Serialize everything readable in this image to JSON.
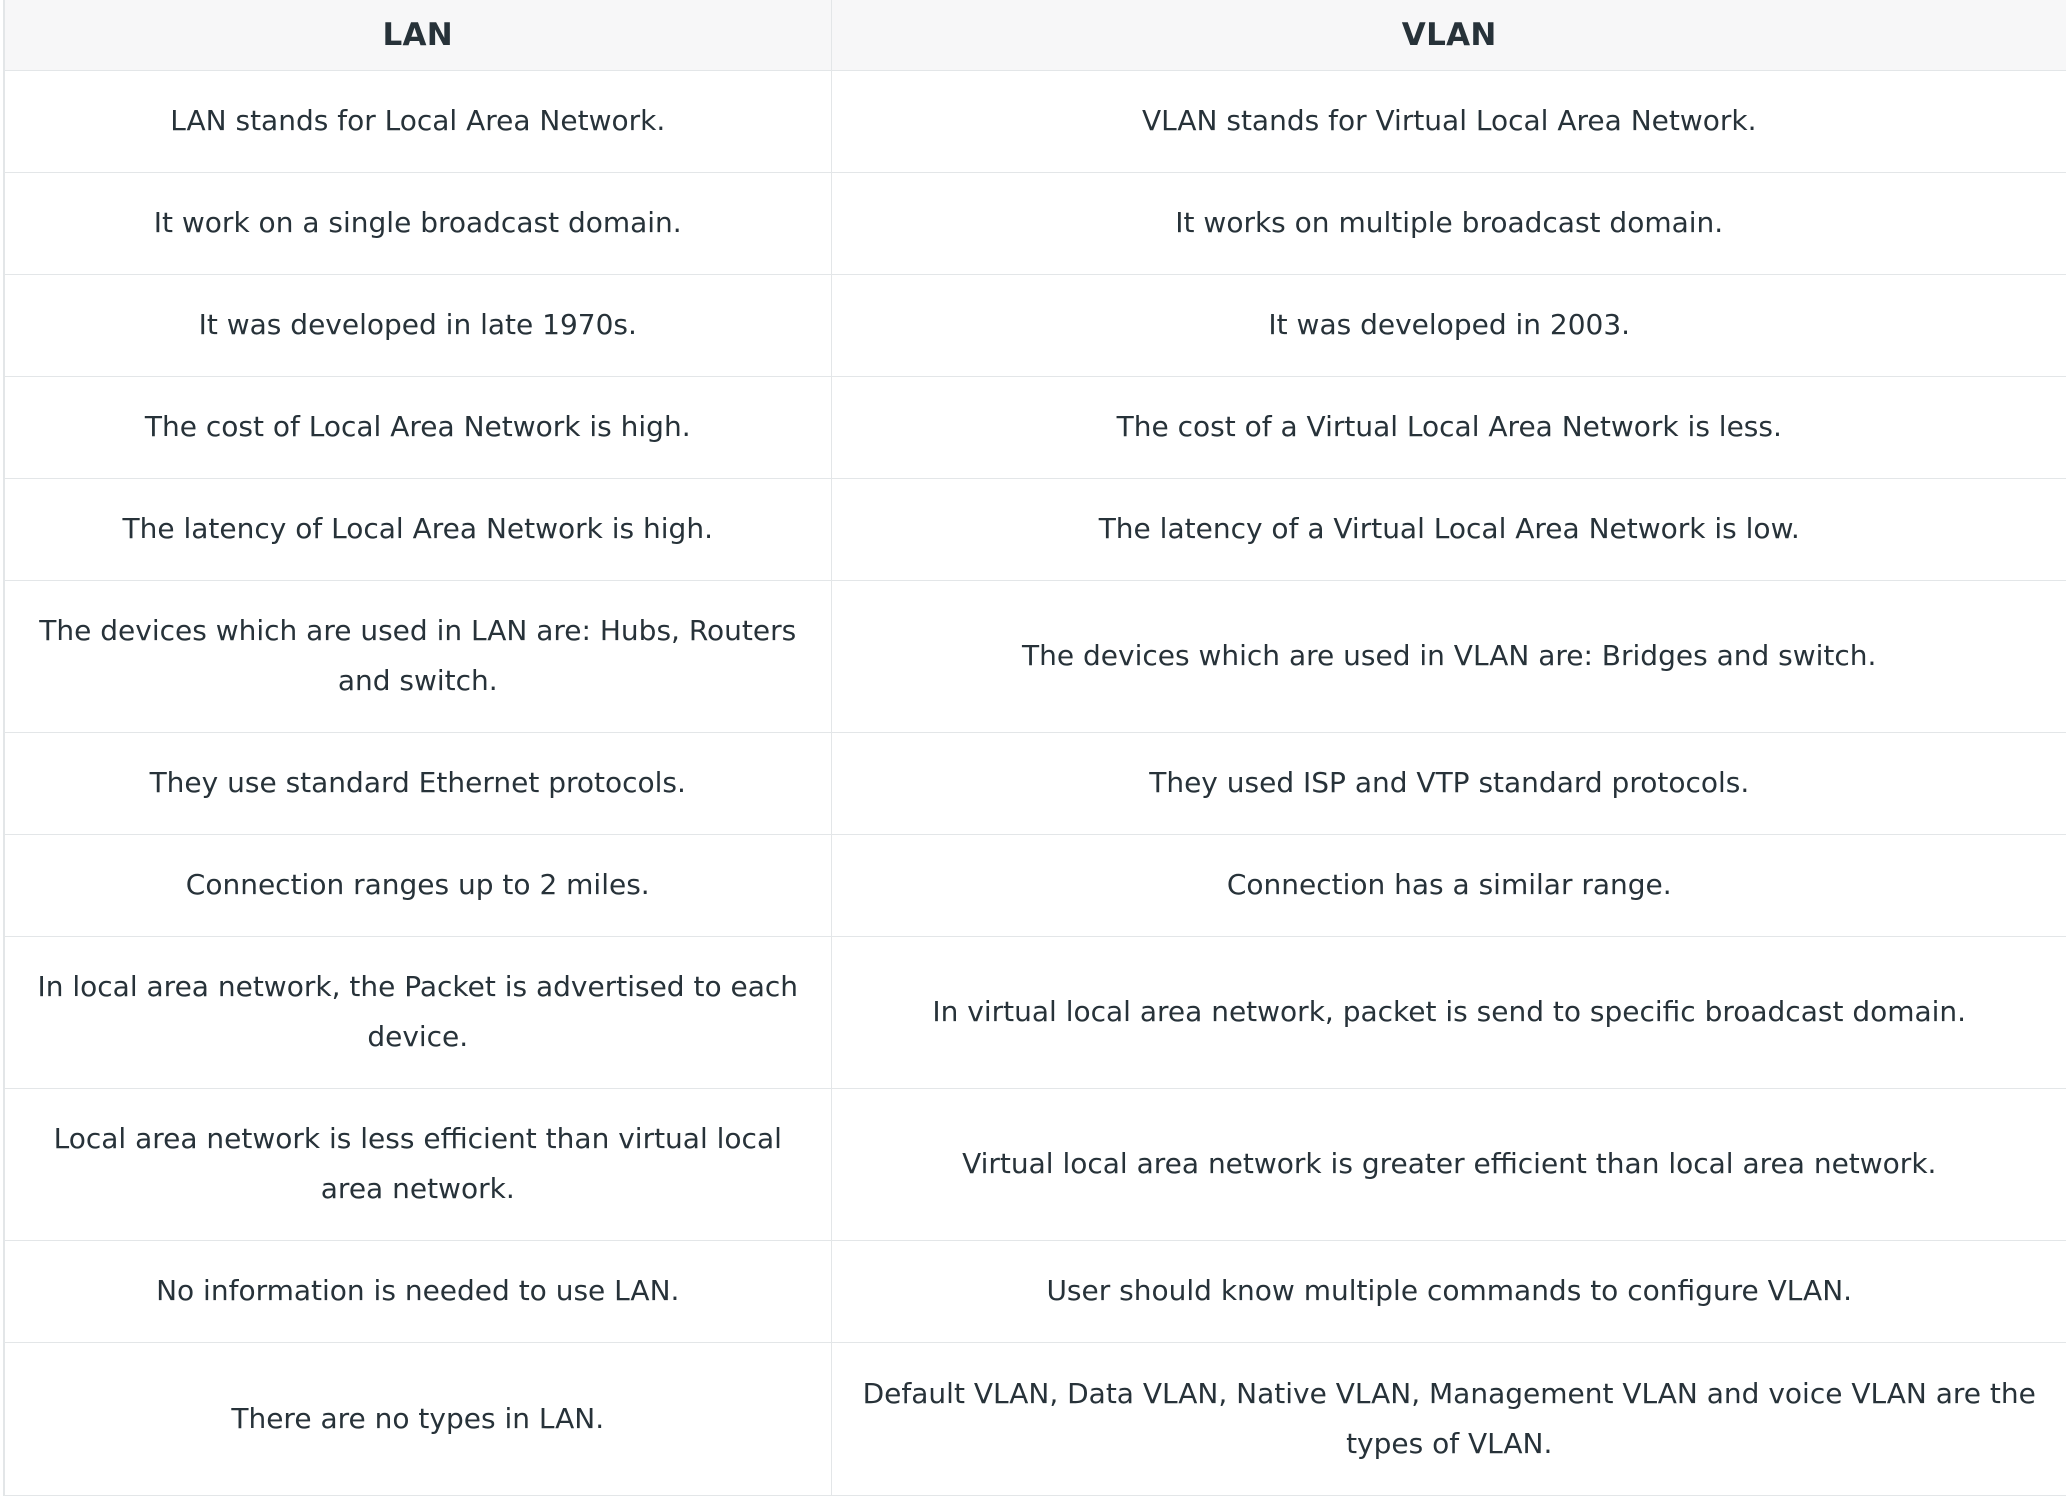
{
  "table": {
    "headers": [
      "LAN",
      "VLAN"
    ],
    "rows": [
      [
        "LAN stands for Local Area Network.",
        "VLAN stands for Virtual Local Area Network."
      ],
      [
        "It work on a single broadcast domain.",
        "It works on multiple broadcast domain."
      ],
      [
        "It was developed in late 1970s.",
        "It was developed in 2003."
      ],
      [
        "The cost of Local Area Network is high.",
        "The cost of a Virtual Local Area Network is less."
      ],
      [
        "The latency of Local Area Network is high.",
        "The latency of a Virtual Local Area Network is low."
      ],
      [
        "The devices which are used in LAN are: Hubs, Routers and switch.",
        "The devices which are used in VLAN are: Bridges and switch."
      ],
      [
        "They use standard Ethernet protocols.",
        "They used ISP and VTP standard protocols."
      ],
      [
        "Connection ranges up to 2 miles.",
        "Connection has a similar range."
      ],
      [
        "In local area network, the Packet is advertised to each device.",
        "In virtual local area network, packet is send to specific broadcast domain."
      ],
      [
        "Local area network is less efficient than virtual local area network.",
        "Virtual local area network is greater efficient than local area network."
      ],
      [
        "No information is needed to use LAN.",
        "User should know multiple commands to configure VLAN."
      ],
      [
        "There are no types in LAN.",
        "Default VLAN, Data VLAN, Native VLAN, Management VLAN and voice VLAN are the types of VLAN."
      ]
    ]
  }
}
